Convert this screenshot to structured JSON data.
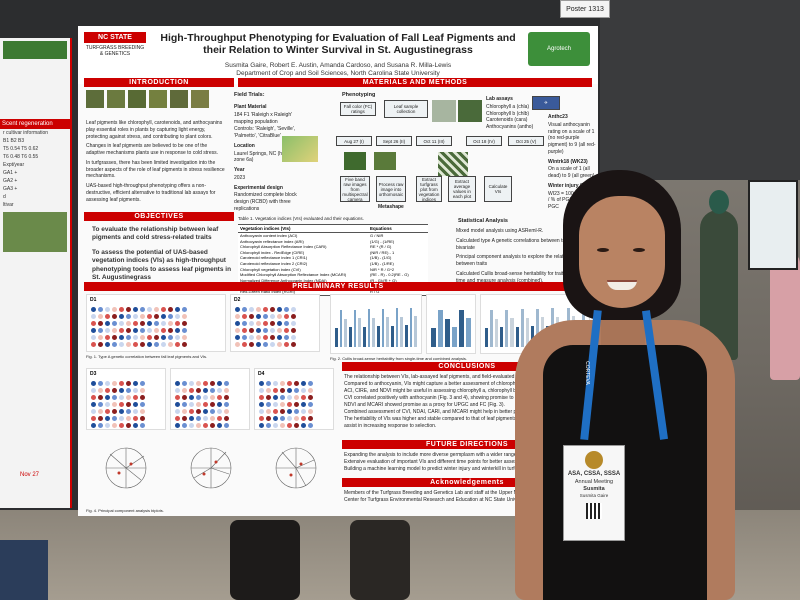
{
  "scene": {
    "ceiling_tag": "Poster 1313"
  },
  "left_poster": {
    "section": "Scent regeneration",
    "lines": [
      "r cultivar information",
      "B1   B2   B3",
      "T5 0.54  T5 0.62",
      "T6 0.48  T6 0.55",
      "Expt/year",
      "GA1 +",
      "GA2 +",
      "GA3 +",
      "d",
      "ltivar"
    ],
    "foot": "Nov 27"
  },
  "poster": {
    "logo_top": "NC STATE",
    "logo_sub": "TURFGRASS BREEDING & GENETICS",
    "title": "High-Throughput Phenotyping for Evaluation of Fall Leaf Pigments and their Relation to Winter Survival in St. Augustinegrass",
    "authors": "Susmita Gaire, Robert E. Austin, Amanda Cardoso, and Susana R. Milla-Lewis",
    "affiliation": "Department of Crop and Soil Sciences, North Carolina State University",
    "right_logo": "Agrotech",
    "sections": {
      "introduction": "INTRODUCTION",
      "methods": "MATERIALS AND METHODS",
      "objectives": "OBJECTIVES",
      "results": "PRELIMINARY RESULTS",
      "conclusions": "CONCLUSIONS",
      "future": "FUTURE DIRECTIONS",
      "ack": "Acknowledgements"
    },
    "intro_points": [
      "Leaf pigments like chlorophyll, carotenoids, and anthocyanins play essential roles in plants by capturing light energy, protecting against stress, and contributing to plant colors.",
      "Changes in leaf pigments are believed to be one of the adaptive mechanisms plants use in response to cold stress.",
      "In turfgrasses, there has been limited investigation into the broader aspects of the role of leaf pigments in stress resilience mechanisms.",
      "UAS-based high-throughput phenotyping offers a non-destructive, efficient alternative to traditional lab assays for assessing leaf pigments."
    ],
    "field_trials": "Field Trials:",
    "plant_material": [
      "Plant Material",
      "184 F1 'Raleigh x Raleigh' mapping population",
      "Controls: 'Raleigh', 'Seville', 'Palmetto', 'CitraBlue'"
    ],
    "location": [
      "Location",
      "Laurel Springs, NC (hardiness zone 6a)"
    ],
    "year": [
      "Year",
      "2023"
    ],
    "design": [
      "Experimental design",
      "Randomized complete block design (RCBD) with three replications"
    ],
    "phenotyping": "Phenotyping",
    "flow_top": [
      "Fall color (FC) ratings",
      "Leaf sample collection",
      "Lab assays"
    ],
    "lab_assays": [
      "Chlorophyll a (chla)",
      "Chlorophyll b (chlb)",
      "Carotenoids (cara)",
      "Anthocyanins (antho)"
    ],
    "dates": [
      "Aug 27 (I)",
      "Sept 26 (II)",
      "Oct 11 (III)",
      "Oct 18 (IV)",
      "Oct 25 (V)"
    ],
    "flow_bottom": [
      "Five band raw images from multispectral camera",
      "Process raw image into orthomosaic",
      "Extract turfgrass plot from vegetation indices",
      "Extract average values in each plot",
      "Calculate VIs"
    ],
    "metashape": "Metashape",
    "winter": [
      "Anthc23",
      "Visual anthocyanin rating on a scale of 1 (no red-purple pigment) to 9 (all red-purple)",
      "Wintrk18 (WK23)",
      "On a scale of 1 (all dead) to 9 (all green)",
      "Winter injury (WI23)",
      "WI23 = 100 - (Wintrk / % of PGC) / 100 = PGC"
    ],
    "objectives": [
      "To evaluate the relationship between leaf pigments and cold stress-related traits",
      "To assess the potential of UAS-based vegetation indices (VIs) as high-throughput phenotyping tools to assess leaf pigments in St. Augustinegrass"
    ],
    "table_caption": "Table 1. Vegetation indices (VIs) evaluated and their equations.",
    "table_head": [
      "Vegetation indices (VIs)",
      "Equations"
    ],
    "table_rows": [
      [
        "Anthocyanin content index (ACI)",
        "G / NIR"
      ],
      [
        "Anthocyanin reflectance index (ARI)",
        "(1/G) - (1/RE)"
      ],
      [
        "Chlorophyll Absorption Reflectance Index (CARI)",
        "RE * (R / G)"
      ],
      [
        "Chlorophyll index - RedEdge (CIRE)",
        "(NIR / RE) - 1"
      ],
      [
        "Carotenoid reflectance index 1 (CRI1)",
        "(1/B) - (1/G)"
      ],
      [
        "Carotenoid reflectance index 2 (CRI2)",
        "(1/B) - (1/RE)"
      ],
      [
        "Chlorophyll vegetation index (CVI)",
        "NIR * R / G^2"
      ],
      [
        "Modified Chlorophyll Absorption Reflectance Index (MCARI)",
        "(RE - R) - 0.2(RE - G)"
      ],
      [
        "Normalized Difference Anthocyanin Index (NDAI)",
        "(R - G)/(R + G)"
      ],
      [
        "Normalized Difference Red Edge (NDRE)",
        "(NIR - RE)/(NIR + RE)"
      ],
      [
        "Red-Green Ratio Index (RGRI)",
        "R / G"
      ]
    ],
    "statistical": "Statistical Analysis",
    "stats_points": [
      "Mixed model analysis using ASReml-R.",
      "Calculated type A genetic correlations between traits using a bivariate",
      "Principal component analysis to explore the relationship between traits",
      "Calculated Cullis broad-sense heritability for traits from single-time and measure analysis (combined)."
    ],
    "panel_labels": [
      "D1",
      "D2",
      "D3",
      "D4"
    ],
    "fig_captions": [
      "Fig. 1. Type A genetic correlation between fall leaf pigments and VIs.",
      "Fig. 2. Cullis broad-sense heritability from single-time and combined analysis.",
      "Fig. 4. Principal component analysis biplots."
    ],
    "conclusions": [
      "The relationship between VIs, lab-assayed leaf pigments, and field-evaluated traits was found",
      "Compared to anthocyanin, VIs might capture a better assessment of chlorophyll a, chlorophyll b",
      "ACI, CIRE, and NDVI might be useful in assessing chlorophyll a, chlorophyll b, and carotenoids",
      "CVI correlated positively with anthocyanin (Fig. 3 and 4), showing promise to be a proxy for antho",
      "NDVI and MCARI showed promise as a proxy for UPGC and FC (Fig. 3).",
      "Combined assessment of CVI, NDAI, CARI, and MCARI might help in better prediction of WI",
      "The heritability of VIs was higher and stable compared to that of leaf pigments (Fig. 1 and 2)",
      "assist in increasing response to selection."
    ],
    "future": [
      "Expanding the analysis to include more diverse germplasm with a wider range of freeze toleran",
      "Extensive evaluation of important VIs and different time points for better assessment of leaf p",
      "Building a machine learning model to predict winter injury and winterkill in turfgrass using VIs."
    ],
    "ack_text": "Members of the Turfgrass Breeding and Genetics Lab and staff at the Upper Mountain Research Station, the Center for Turfgrass Environmental Research and Education at NC State University."
  },
  "badge": {
    "org": "ASA, CSSA, SSSA",
    "event": "Annual Meeting",
    "name": "Susmita",
    "fullname": "Susmita Gaire",
    "lanyard": "CORTEVA"
  },
  "colors": {
    "accent_red": "#cc0000",
    "lanyard_blue": "#1f6fc4",
    "board": "#2c2d2f"
  }
}
